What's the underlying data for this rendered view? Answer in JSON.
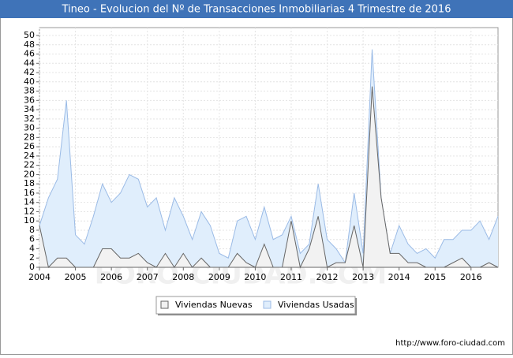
{
  "chart_data": {
    "type": "area",
    "title": "Tineo - Evolucion del Nº de Transacciones Inmobiliarias 4 Trimestre de 2016",
    "source": "http://www.foro-ciudad.com",
    "watermark": "FORO-CIUDAD.COM",
    "x": [
      2004,
      2004.25,
      2004.5,
      2004.75,
      2005,
      2005.25,
      2005.5,
      2005.75,
      2006,
      2006.25,
      2006.5,
      2006.75,
      2007,
      2007.25,
      2007.5,
      2007.75,
      2008,
      2008.25,
      2008.5,
      2008.75,
      2009,
      2009.25,
      2009.5,
      2009.75,
      2010,
      2010.25,
      2010.5,
      2010.75,
      2011,
      2011.25,
      2011.5,
      2011.75,
      2012,
      2012.25,
      2012.5,
      2012.75,
      2013,
      2013.25,
      2013.5,
      2013.75,
      2014,
      2014.25,
      2014.5,
      2014.75,
      2015,
      2015.25,
      2015.5,
      2015.75,
      2016,
      2016.25,
      2016.5,
      2016.75
    ],
    "series": [
      {
        "name": "Viviendas Usadas",
        "color": "#9bbbe6",
        "fill": "#e0eefc",
        "values": [
          9,
          15,
          19,
          36,
          7,
          5,
          11,
          18,
          14,
          16,
          20,
          19,
          13,
          15,
          8,
          15,
          11,
          6,
          12,
          9,
          3,
          2,
          10,
          11,
          6,
          13,
          6,
          7,
          11,
          3,
          5,
          18,
          6,
          4,
          1,
          16,
          3,
          47,
          15,
          3,
          9,
          5,
          3,
          4,
          2,
          6,
          6,
          8,
          8,
          10,
          6,
          11
        ]
      },
      {
        "name": "Viviendas Nuevas",
        "color": "#666666",
        "fill": "#f2f2f2",
        "values": [
          9,
          0,
          2,
          2,
          0,
          0,
          0,
          4,
          4,
          2,
          2,
          3,
          1,
          0,
          3,
          0,
          3,
          0,
          2,
          0,
          0,
          0,
          3,
          1,
          0,
          5,
          0,
          0,
          10,
          0,
          4,
          11,
          0,
          1,
          1,
          9,
          0,
          39,
          15,
          3,
          3,
          1,
          1,
          0,
          0,
          0,
          1,
          2,
          0,
          0,
          1,
          0
        ]
      }
    ],
    "legend_order": [
      1,
      0
    ],
    "xlim": [
      2004,
      2016.75
    ],
    "xticks": [
      2004,
      2005,
      2006,
      2007,
      2008,
      2009,
      2010,
      2011,
      2012,
      2013,
      2014,
      2015,
      2016
    ],
    "ylim": [
      0,
      50
    ],
    "yticks": [
      0,
      2,
      4,
      6,
      8,
      10,
      12,
      14,
      16,
      18,
      20,
      22,
      24,
      26,
      28,
      30,
      32,
      34,
      36,
      38,
      40,
      42,
      44,
      46,
      48,
      50
    ],
    "grid": true
  }
}
